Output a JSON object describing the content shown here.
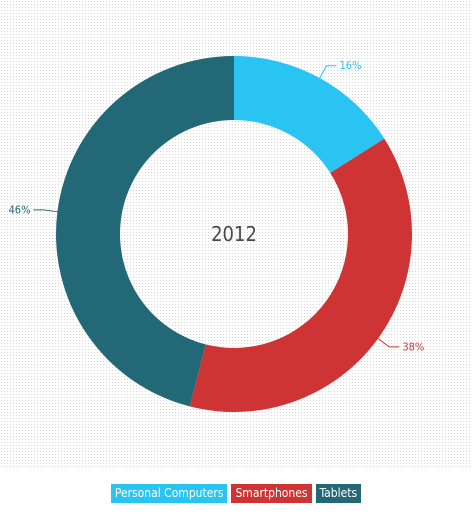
{
  "chart_data": {
    "type": "pie",
    "variant": "donut",
    "center_label": "2012",
    "slices": [
      {
        "name": "Personal Computers",
        "value": 16,
        "label": "16%",
        "color": "#29c4f2"
      },
      {
        "name": "Smartphones",
        "value": 38,
        "label": "38%",
        "color": "#cf3434"
      },
      {
        "name": "Tablets",
        "value": 46,
        "label": "46%",
        "color": "#236877"
      }
    ],
    "legend_placement": "bottom-center"
  }
}
